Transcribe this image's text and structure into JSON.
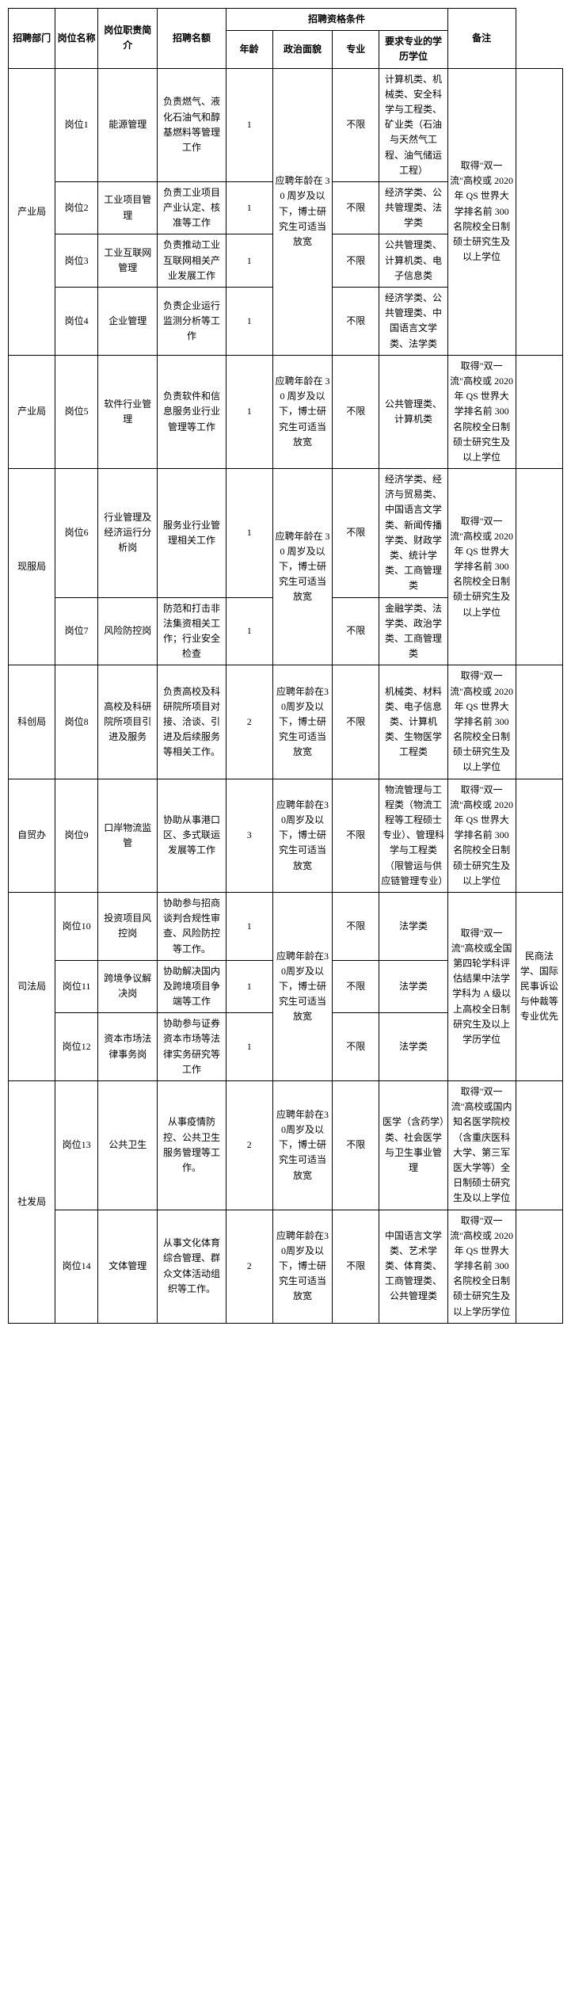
{
  "headers": {
    "dept": "招聘部门",
    "name": "岗位名称",
    "pos": "岗位职责简介",
    "num": "招聘名额",
    "qual_group": "招聘资格条件",
    "age": "年龄",
    "poli": "政治面貌",
    "major": "专业",
    "edu": "要求专业的学历学位",
    "note": "备注"
  },
  "dept1": "产业局",
  "dept1b": "产业局",
  "dept2": "现服局",
  "dept3": "科创局",
  "dept4": "自贸办",
  "dept5": "司法局",
  "dept6": "社发局",
  "r1": {
    "name": "岗位1",
    "pos": "能源管理",
    "duty": "负责燃气、液化石油气和醇基燃料等管理工作",
    "num": "1",
    "poli": "不限",
    "major": "计算机类、机械类、安全科学与工程类、矿业类（石油与天然气工程、油气储运工程）"
  },
  "r2": {
    "name": "岗位2",
    "pos": "工业项目管理",
    "duty": "负责工业项目产业认定、核准等工作",
    "num": "1",
    "poli": "不限",
    "major": "经济学类、公共管理类、法学类"
  },
  "r3": {
    "name": "岗位3",
    "pos": "工业互联网管理",
    "duty": "负责推动工业互联网相关产业发展工作",
    "num": "1",
    "poli": "不限",
    "major": "公共管理类、计算机类、电子信息类"
  },
  "r4": {
    "name": "岗位4",
    "pos": "企业管理",
    "duty": "负责企业运行监测分析等工作",
    "num": "1",
    "poli": "不限",
    "major": "经济学类、公共管理类、中国语言文学类、法学类"
  },
  "age_r1_4": "应聘年龄在 30 周岁及以下，博士研究生可适当放宽",
  "edu_r1_4": "取得\"双一流\"高校或 2020 年 QS 世界大学排名前 300 名院校全日制硕士研究生及以上学位",
  "r5": {
    "name": "岗位5",
    "pos": "软件行业管理",
    "duty": "负责软件和信息服务业行业管理等工作",
    "num": "1",
    "age": "应聘年龄在 30 周岁及以下，博士研究生可适当放宽",
    "poli": "不限",
    "major": "公共管理类、计算机类",
    "edu": "取得\"双一流\"高校或 2020 年 QS 世界大学排名前 300 名院校全日制硕士研究生及以上学位"
  },
  "r6": {
    "name": "岗位6",
    "pos": "行业管理及经济运行分析岗",
    "duty": "服务业行业管理相关工作",
    "num": "1",
    "poli": "不限",
    "major": "经济学类、经济与贸易类、中国语言文学类、新闻传播学类、财政学类、统计学类、工商管理类"
  },
  "r7": {
    "name": "岗位7",
    "pos": "风险防控岗",
    "duty": "防范和打击非法集资相关工作；行业安全检查",
    "num": "1",
    "poli": "不限",
    "major": "金融学类、法学类、政治学类、工商管理类"
  },
  "age_r6_7": "应聘年龄在 30 周岁及以下，博士研究生可适当放宽",
  "edu_r6_7": "取得\"双一流\"高校或 2020 年 QS 世界大学排名前 300 名院校全日制硕士研究生及以上学位",
  "r8": {
    "name": "岗位8",
    "pos": "高校及科研院所项目引进及服务",
    "duty": "负责高校及科研院所项目对接、洽谈、引进及后续服务等相关工作。",
    "num": "2",
    "age": "应聘年龄在30周岁及以下，博士研究生可适当放宽",
    "poli": "不限",
    "major": "机械类、材料类、电子信息类、计算机类、生物医学工程类",
    "edu": "取得\"双一流\"高校或 2020 年 QS 世界大学排名前 300 名院校全日制硕士研究生及以上学位"
  },
  "r9": {
    "name": "岗位9",
    "pos": "口岸物流监管",
    "duty": "协助从事港口区、多式联运发展等工作",
    "num": "3",
    "age": "应聘年龄在30周岁及以下，博士研究生可适当放宽",
    "poli": "不限",
    "major": "物流管理与工程类（物流工程等工程硕士专业）、管理科学与工程类（限管运与供应链管理专业）",
    "edu": "取得\"双一流\"高校或 2020 年 QS 世界大学排名前 300 名院校全日制硕士研究生及以上学位"
  },
  "r10": {
    "name": "岗位10",
    "pos": "投资项目风控岗",
    "duty": "协助参与招商谈判合规性审查、风险防控等工作。",
    "num": "1",
    "poli": "不限",
    "major": "法学类"
  },
  "r11": {
    "name": "岗位11",
    "pos": "跨境争议解决岗",
    "duty": "协助解决国内及跨境项目争端等工作",
    "num": "1",
    "poli": "不限",
    "major": "法学类"
  },
  "r12": {
    "name": "岗位12",
    "pos": "资本市场法律事务岗",
    "duty": "协助参与证券资本市场等法律实务研究等工作",
    "num": "1",
    "poli": "不限",
    "major": "法学类"
  },
  "age_r10_12": "应聘年龄在30周岁及以下，博士研究生可适当放宽",
  "edu_r10_12": "取得\"双一流\"高校或全国第四轮学科评估结果中法学学科为 A 级以上高校全日制研究生及以上学历学位",
  "note_r10_12": "民商法学、国际民事诉讼与仲裁等专业优先",
  "r13": {
    "name": "岗位13",
    "pos": "公共卫生",
    "duty": "从事疫情防控、公共卫生服务管理等工作。",
    "num": "2",
    "age": "应聘年龄在30周岁及以下，博士研究生可适当放宽",
    "poli": "不限",
    "major": "医学（含药学）类、社会医学与卫生事业管理",
    "edu": "取得\"双一流\"高校或国内知名医学院校（含重庆医科大学、第三军医大学等）全日制硕士研究生及以上学位"
  },
  "r14": {
    "name": "岗位14",
    "pos": "文体管理",
    "duty": "从事文化体育综合管理、群众文体活动组织等工作。",
    "num": "2",
    "age": "应聘年龄在30周岁及以下，博士研究生可适当放宽",
    "poli": "不限",
    "major": "中国语言文学类、艺术学类、体育类、工商管理类、公共管理类",
    "edu": "取得\"双一流\"高校或 2020 年 QS 世界大学排名前 300 名院校全日制硕士研究生及以上学历学位"
  }
}
